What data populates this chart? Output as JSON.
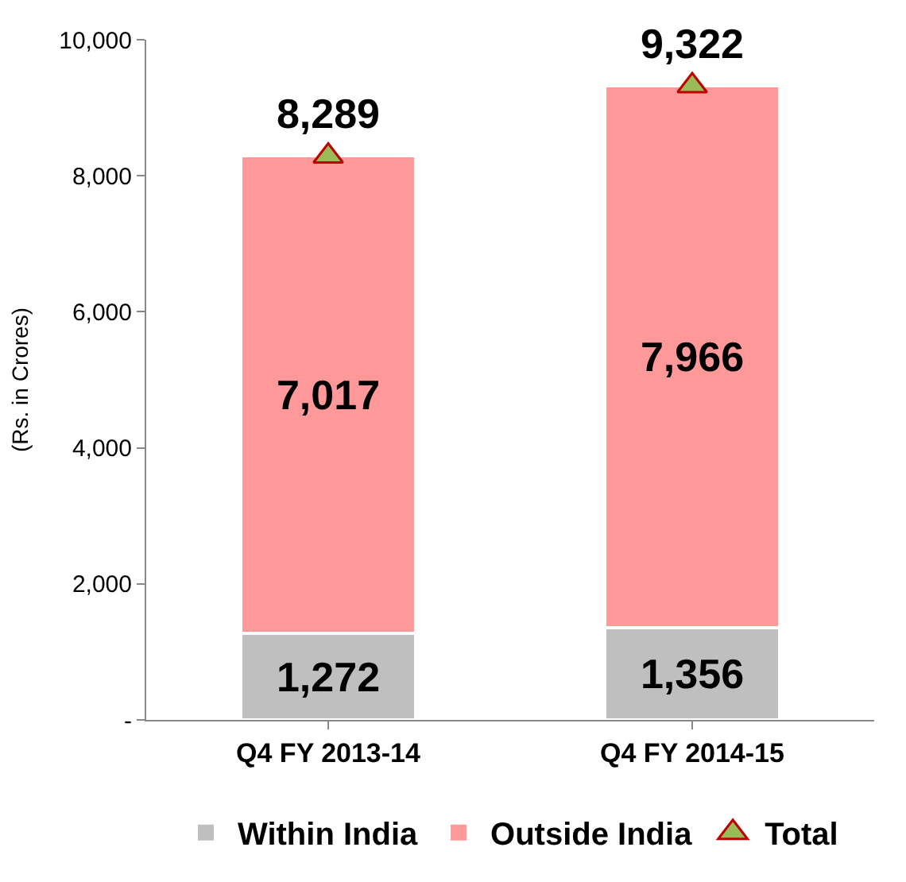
{
  "chart_data": {
    "type": "bar",
    "stacked": true,
    "ylabel": "(Rs. in Crores)",
    "categories": [
      "Q4 FY 2013-14",
      "Q4 FY 2014-15"
    ],
    "series": [
      {
        "name": "Within India",
        "color": "#bfbfbf",
        "values": [
          1272,
          1356
        ],
        "value_labels": [
          "1,272",
          "1,356"
        ]
      },
      {
        "name": "Outside India",
        "color": "#ff9999",
        "values": [
          7017,
          7966
        ],
        "value_labels": [
          "7,017",
          "7,966"
        ]
      },
      {
        "name": "Total",
        "type": "scatter",
        "marker": "triangle",
        "color": "#9bbb59",
        "x": [
          "Q4 FY 2013-14",
          "Q4 FY 2014-15"
        ],
        "values": [
          8289,
          9322
        ],
        "value_labels": [
          "8,289",
          "9,322"
        ]
      }
    ],
    "ylim": [
      0,
      10000
    ],
    "yticks": [
      {
        "value": 0,
        "label": "-"
      },
      {
        "value": 2000,
        "label": "2,000"
      },
      {
        "value": 4000,
        "label": "4,000"
      },
      {
        "value": 6000,
        "label": "6,000"
      },
      {
        "value": 8000,
        "label": "8,000"
      },
      {
        "value": 10000,
        "label": "10,000"
      }
    ],
    "legend": "bottom"
  }
}
